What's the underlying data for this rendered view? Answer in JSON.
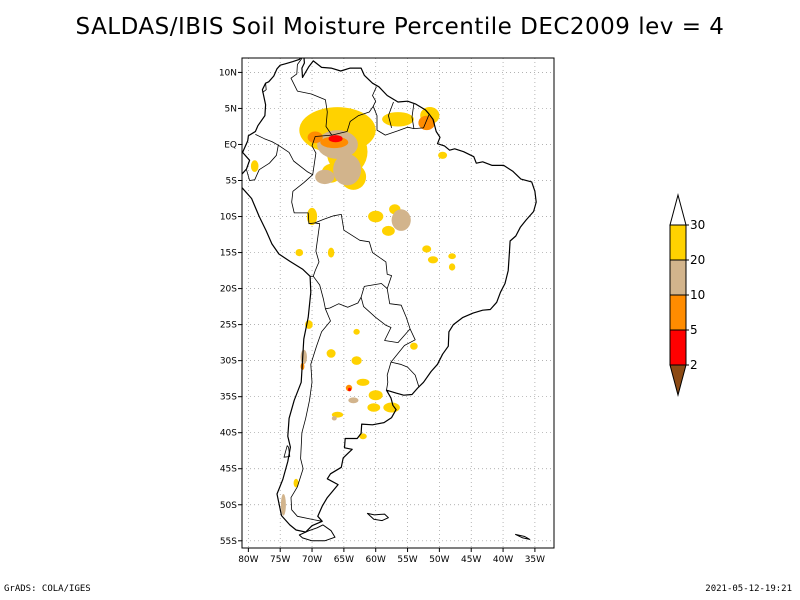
{
  "title": "SALDAS/IBIS Soil Moisture Percentile DEC2009 lev = 4",
  "map": {
    "projection": "lat-lon",
    "lon_range": [
      -81,
      -32
    ],
    "lat_range": [
      -56,
      12
    ],
    "x_ticks": [
      {
        "value": -80,
        "label": "80W"
      },
      {
        "value": -75,
        "label": "75W"
      },
      {
        "value": -70,
        "label": "70W"
      },
      {
        "value": -65,
        "label": "65W"
      },
      {
        "value": -60,
        "label": "60W"
      },
      {
        "value": -55,
        "label": "55W"
      },
      {
        "value": -50,
        "label": "50W"
      },
      {
        "value": -45,
        "label": "45W"
      },
      {
        "value": -40,
        "label": "40W"
      },
      {
        "value": -35,
        "label": "35W"
      }
    ],
    "y_ticks": [
      {
        "value": 10,
        "label": "10N"
      },
      {
        "value": 5,
        "label": "5N"
      },
      {
        "value": 0,
        "label": "EQ"
      },
      {
        "value": -5,
        "label": "5S"
      },
      {
        "value": -10,
        "label": "10S"
      },
      {
        "value": -15,
        "label": "15S"
      },
      {
        "value": -20,
        "label": "20S"
      },
      {
        "value": -25,
        "label": "25S"
      },
      {
        "value": -30,
        "label": "30S"
      },
      {
        "value": -35,
        "label": "35S"
      },
      {
        "value": -40,
        "label": "40S"
      },
      {
        "value": -45,
        "label": "45S"
      },
      {
        "value": -50,
        "label": "50S"
      },
      {
        "value": -55,
        "label": "55S"
      }
    ],
    "gridlines": "dotted"
  },
  "colorbar": {
    "levels": [
      "2",
      "5",
      "10",
      "20",
      "30"
    ],
    "colors": [
      "#8c4a14",
      "#ff0000",
      "#ff8c00",
      "#d2b48c",
      "#ffd200",
      "#ffffff"
    ]
  },
  "footer": {
    "left": "GrADS: COLA/IGES",
    "right": "2021-05-12-19:21"
  }
}
